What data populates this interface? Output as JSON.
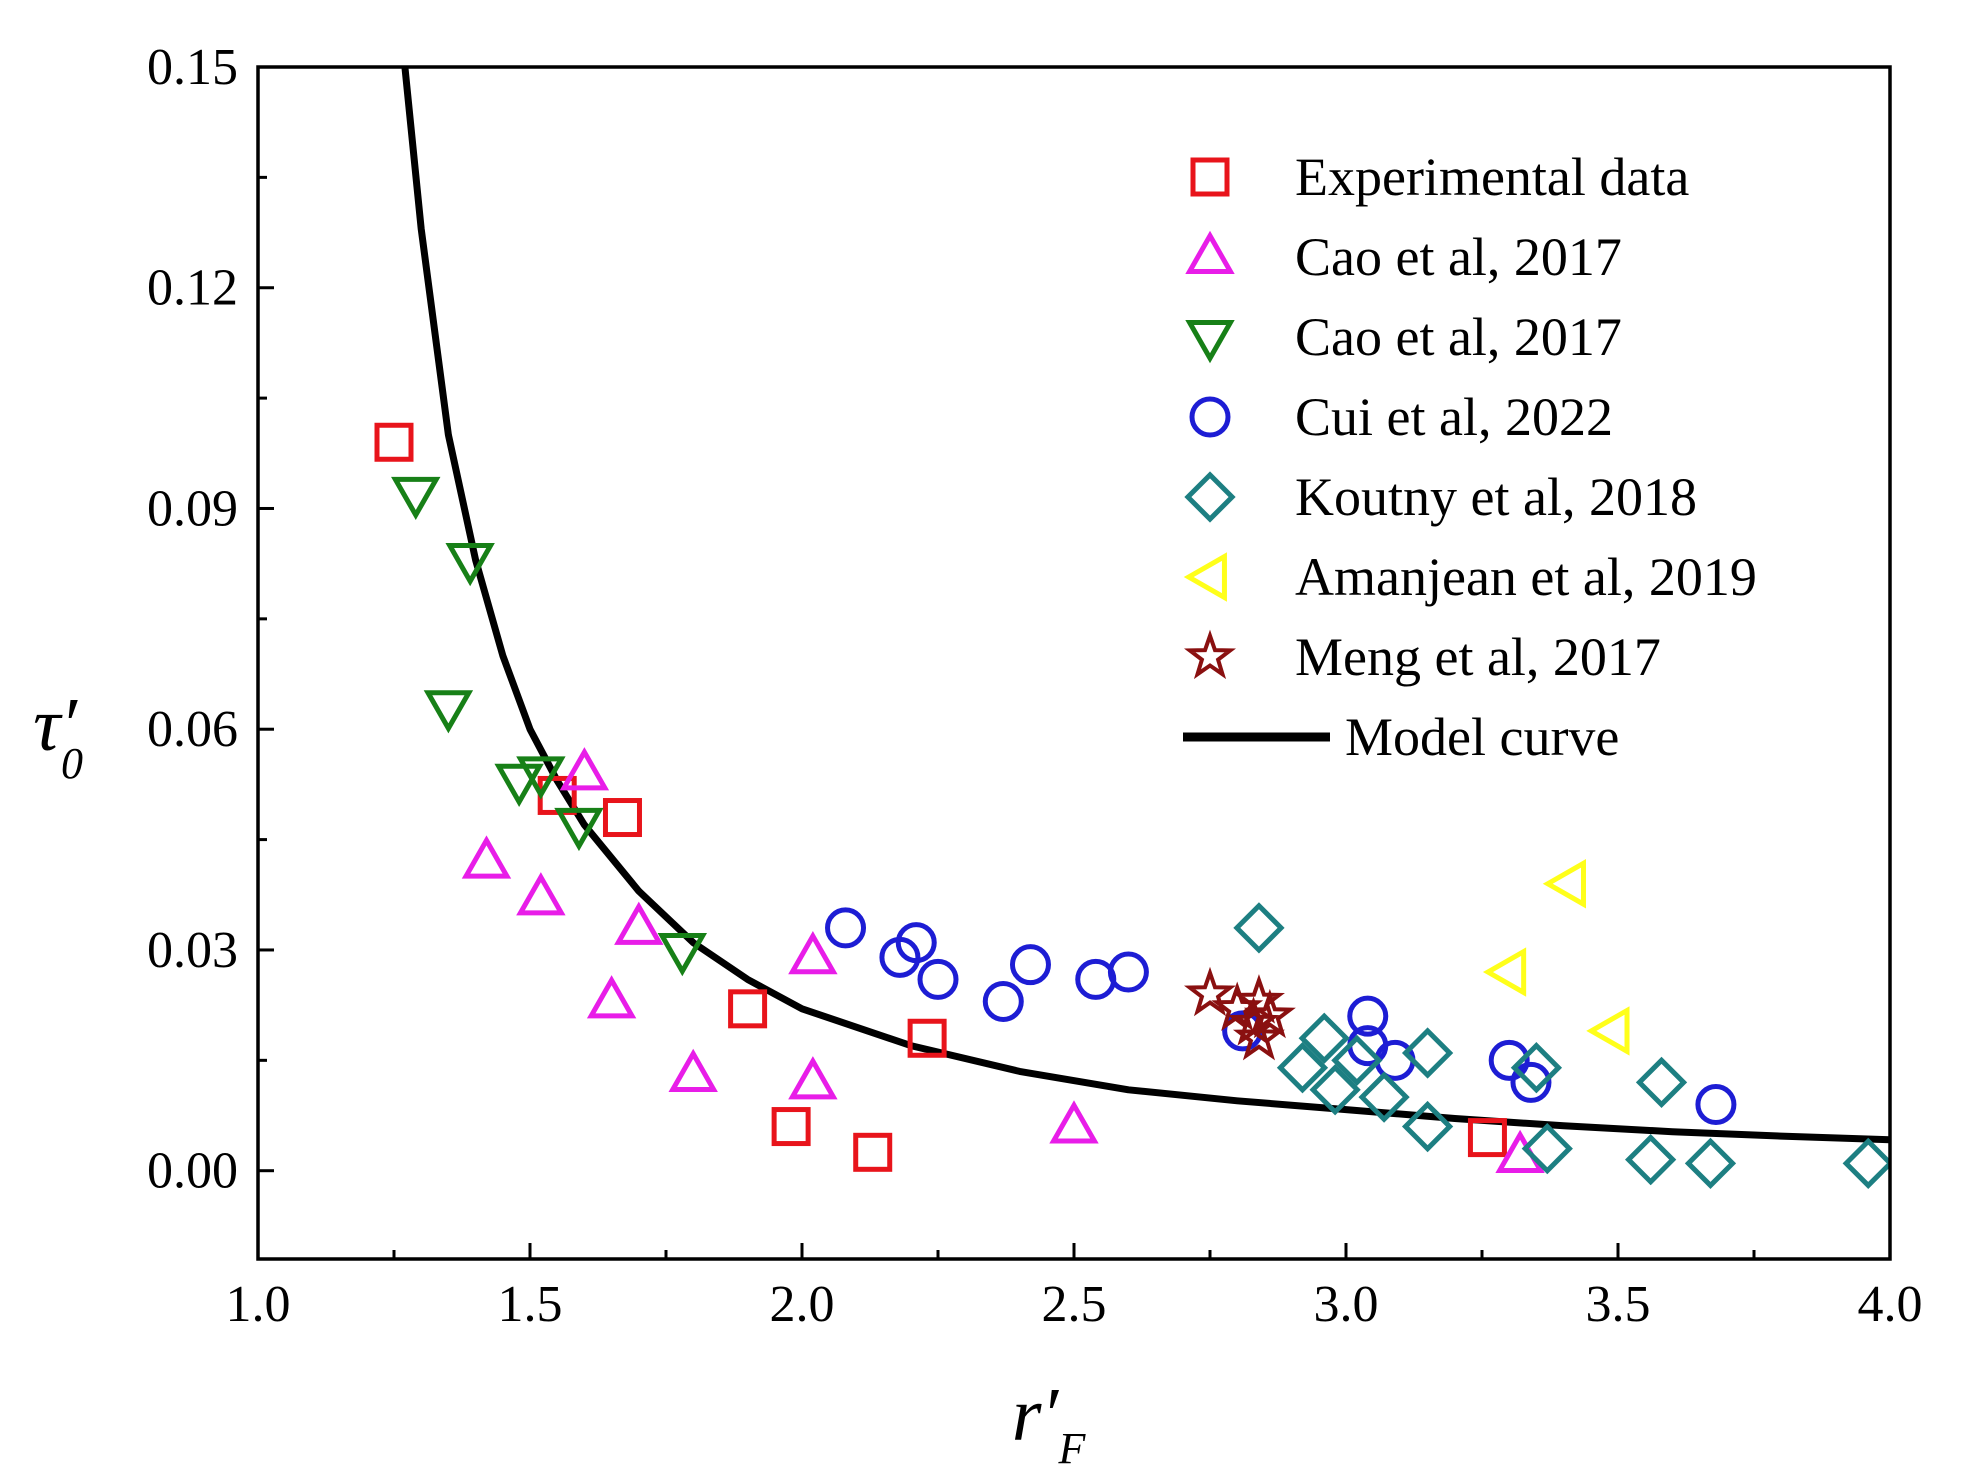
{
  "chart_data": {
    "type": "scatter",
    "title": "",
    "xlabel": "r′",
    "xlabel_sub": "F",
    "ylabel": "τ′",
    "ylabel_sub": "0",
    "xlim": [
      1.0,
      4.0
    ],
    "ylim": [
      -0.012,
      0.15
    ],
    "x_ticks": [
      {
        "value": 1.0,
        "label": "1.0"
      },
      {
        "value": 1.5,
        "label": "1.5"
      },
      {
        "value": 2.0,
        "label": "2.0"
      },
      {
        "value": 2.5,
        "label": "2.5"
      },
      {
        "value": 3.0,
        "label": "3.0"
      },
      {
        "value": 3.5,
        "label": "3.5"
      },
      {
        "value": 4.0,
        "label": "4.0"
      }
    ],
    "y_ticks": [
      {
        "value": 0.0,
        "label": "0.00"
      },
      {
        "value": 0.03,
        "label": "0.03"
      },
      {
        "value": 0.06,
        "label": "0.06"
      },
      {
        "value": 0.09,
        "label": "0.09"
      },
      {
        "value": 0.12,
        "label": "0.12"
      },
      {
        "value": 0.15,
        "label": "0.15"
      }
    ],
    "grid": false,
    "legend_position": "top-right",
    "series": [
      {
        "name": "Experimental data",
        "marker": "square",
        "color": "#e8141b",
        "points": [
          [
            1.25,
            0.099
          ],
          [
            1.55,
            0.051
          ],
          [
            1.67,
            0.048
          ],
          [
            1.9,
            0.022
          ],
          [
            1.98,
            0.006
          ],
          [
            2.13,
            0.0025
          ],
          [
            2.23,
            0.018
          ],
          [
            3.26,
            0.0045
          ]
        ]
      },
      {
        "name": "Cao et al, 2017",
        "marker": "triangle-up",
        "color": "#e81de8",
        "points": [
          [
            1.42,
            0.042
          ],
          [
            1.52,
            0.037
          ],
          [
            1.6,
            0.054
          ],
          [
            1.65,
            0.023
          ],
          [
            1.7,
            0.033
          ],
          [
            1.8,
            0.013
          ],
          [
            2.02,
            0.029
          ],
          [
            2.02,
            0.012
          ],
          [
            2.5,
            0.006
          ],
          [
            3.32,
            0.002
          ]
        ]
      },
      {
        "name": "Cao et al, 2017",
        "marker": "triangle-down",
        "color": "#178017",
        "points": [
          [
            1.29,
            0.092
          ],
          [
            1.39,
            0.083
          ],
          [
            1.35,
            0.063
          ],
          [
            1.48,
            0.053
          ],
          [
            1.52,
            0.054
          ],
          [
            1.59,
            0.047
          ],
          [
            1.78,
            0.03
          ]
        ]
      },
      {
        "name": "Cui et al, 2022",
        "marker": "circle",
        "color": "#1d1dd4",
        "points": [
          [
            2.08,
            0.033
          ],
          [
            2.18,
            0.029
          ],
          [
            2.21,
            0.031
          ],
          [
            2.25,
            0.026
          ],
          [
            2.37,
            0.023
          ],
          [
            2.42,
            0.028
          ],
          [
            2.54,
            0.026
          ],
          [
            2.6,
            0.027
          ],
          [
            2.81,
            0.019
          ],
          [
            3.04,
            0.021
          ],
          [
            3.04,
            0.017
          ],
          [
            3.09,
            0.015
          ],
          [
            3.3,
            0.015
          ],
          [
            3.34,
            0.012
          ],
          [
            3.68,
            0.009
          ]
        ]
      },
      {
        "name": "Koutny et al, 2018",
        "marker": "diamond",
        "color": "#1d7f82",
        "points": [
          [
            2.84,
            0.033
          ],
          [
            2.92,
            0.014
          ],
          [
            2.96,
            0.018
          ],
          [
            2.98,
            0.011
          ],
          [
            3.02,
            0.015
          ],
          [
            3.07,
            0.01
          ],
          [
            3.15,
            0.006
          ],
          [
            3.15,
            0.016
          ],
          [
            3.35,
            0.014
          ],
          [
            3.37,
            0.003
          ],
          [
            3.56,
            0.0015
          ],
          [
            3.58,
            0.012
          ],
          [
            3.67,
            0.001
          ],
          [
            3.96,
            0.001
          ]
        ]
      },
      {
        "name": "Amanjean et al, 2019",
        "marker": "triangle-left",
        "color": "#ffff1a",
        "points": [
          [
            3.3,
            0.027
          ],
          [
            3.41,
            0.039
          ],
          [
            3.49,
            0.019
          ]
        ]
      },
      {
        "name": "Meng et al, 2017",
        "marker": "star",
        "color": "#8a1010",
        "points": [
          [
            2.75,
            0.024
          ],
          [
            2.8,
            0.022
          ],
          [
            2.83,
            0.02
          ],
          [
            2.84,
            0.023
          ],
          [
            2.86,
            0.021
          ],
          [
            2.84,
            0.018
          ]
        ]
      }
    ],
    "model_curve": {
      "name": "Model curve",
      "color": "#000000",
      "points": [
        [
          1.27,
          0.15
        ],
        [
          1.3,
          0.128
        ],
        [
          1.35,
          0.1
        ],
        [
          1.4,
          0.083
        ],
        [
          1.45,
          0.07
        ],
        [
          1.5,
          0.06
        ],
        [
          1.55,
          0.053
        ],
        [
          1.6,
          0.047
        ],
        [
          1.7,
          0.038
        ],
        [
          1.8,
          0.031
        ],
        [
          1.9,
          0.026
        ],
        [
          2.0,
          0.022
        ],
        [
          2.2,
          0.017
        ],
        [
          2.4,
          0.0135
        ],
        [
          2.6,
          0.011
        ],
        [
          2.8,
          0.0095
        ],
        [
          3.0,
          0.0083
        ],
        [
          3.2,
          0.0071
        ],
        [
          3.4,
          0.0061
        ],
        [
          3.6,
          0.0053
        ],
        [
          3.8,
          0.0047
        ],
        [
          4.0,
          0.0042
        ]
      ]
    }
  }
}
